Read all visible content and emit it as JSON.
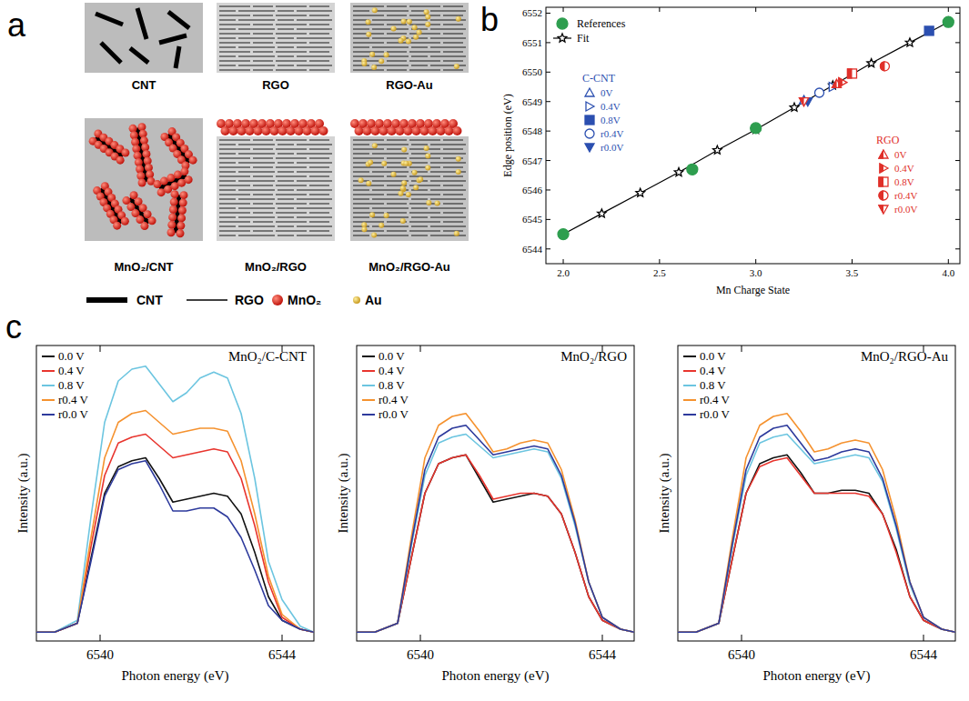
{
  "panel_letters": [
    "a",
    "b",
    "c"
  ],
  "diagram": {
    "boxes": [
      "CNT",
      "RGO",
      "RGO-Au",
      "MnO₂/CNT",
      "MnO₂/RGO",
      "MnO₂/RGO-Au"
    ],
    "legend": [
      "CNT",
      "RGO",
      "MnO₂",
      "Au"
    ]
  },
  "chart_data": [
    {
      "type": "scatter",
      "x_label": "Mn Charge State",
      "y_label": "Edge position (eV)",
      "xlim": [
        1.91,
        4.06
      ],
      "ylim": [
        6543.5,
        6552.2
      ],
      "xticks": [
        {
          "value": 2,
          "label": "2.0"
        },
        {
          "value": 2.5,
          "label": "2.5"
        },
        {
          "value": 3,
          "label": "3.0"
        },
        {
          "value": 3.5,
          "label": "3.5"
        },
        {
          "value": 4,
          "label": "4.0"
        }
      ],
      "yticks": [
        6544,
        6545,
        6546,
        6547,
        6548,
        6549,
        6550,
        6551,
        6552
      ],
      "legend": "upper left",
      "series": [
        {
          "name": "References",
          "type": "scatter",
          "marker": "circle-filled",
          "color": "#2e9e4f",
          "x": [
            2,
            2.67,
            3,
            4
          ],
          "values": [
            6544.5,
            6546.7,
            6548.1,
            6551.7
          ]
        },
        {
          "name": "Fit",
          "type": "line",
          "marker": "star",
          "color": "#000000",
          "x": [
            2.0,
            2.2,
            2.4,
            2.6,
            2.8,
            3.0,
            3.2,
            3.4,
            3.6,
            3.8,
            4.0
          ],
          "values": [
            6544.5,
            6545.2,
            6545.9,
            6546.6,
            6547.35,
            6548.05,
            6548.8,
            6549.55,
            6550.3,
            6551.0,
            6551.7
          ]
        }
      ],
      "groups": [
        {
          "name": "C-CNT",
          "color": "#2b4fb0",
          "series": [
            {
              "name": "0V",
              "marker": "triangle-up",
              "x": [
                3.25
              ],
              "values": [
                6549.05
              ]
            },
            {
              "name": "0.4V",
              "marker": "triangle-right",
              "x": [
                3.4
              ],
              "values": [
                6549.5
              ]
            },
            {
              "name": "0.8V",
              "marker": "square-filled",
              "x": [
                3.9
              ],
              "values": [
                6551.4
              ]
            },
            {
              "name": "r0.4V",
              "marker": "circle",
              "x": [
                3.33
              ],
              "values": [
                6549.3
              ]
            },
            {
              "name": "r0.0V",
              "marker": "triangle-down-filled",
              "x": [
                3.27
              ],
              "values": [
                6549.0
              ]
            }
          ]
        },
        {
          "name": "RGO",
          "color": "#e0302a",
          "series": [
            {
              "name": "0V",
              "marker": "triangle-up-half",
              "x": [
                3.42
              ],
              "values": [
                6549.6
              ]
            },
            {
              "name": "0.4V",
              "marker": "triangle-right-half",
              "x": [
                3.45
              ],
              "values": [
                6549.65
              ]
            },
            {
              "name": "0.8V",
              "marker": "square-half",
              "x": [
                3.5
              ],
              "values": [
                6549.95
              ]
            },
            {
              "name": "r0.4V",
              "marker": "circle-half",
              "x": [
                3.67
              ],
              "values": [
                6550.2
              ]
            },
            {
              "name": "r0.0V",
              "marker": "triangle-down-half",
              "x": [
                3.25
              ],
              "values": [
                6549.0
              ]
            }
          ]
        }
      ]
    },
    {
      "type": "line",
      "title": "MnO₂/C-CNT",
      "x_label": "Photon energy (eV)",
      "y_label": "Intensity (a.u.)",
      "xlim": [
        6538.6,
        6544.7
      ],
      "ylim": [
        0,
        1
      ],
      "xticks": [
        6540,
        6544
      ],
      "tick_labels": "x",
      "legend": "upper left",
      "x": [
        6538.6,
        6539.0,
        6539.5,
        6539.8,
        6540.1,
        6540.4,
        6540.7,
        6541.0,
        6541.3,
        6541.6,
        6541.9,
        6542.2,
        6542.5,
        6542.8,
        6543.1,
        6543.4,
        6543.7,
        6544.0,
        6544.4,
        6544.7
      ],
      "series": [
        {
          "name": "0.0 V",
          "color": "#111111",
          "values": [
            0.03,
            0.03,
            0.06,
            0.28,
            0.5,
            0.59,
            0.61,
            0.62,
            0.55,
            0.47,
            0.48,
            0.49,
            0.5,
            0.49,
            0.43,
            0.3,
            0.15,
            0.07,
            0.04,
            0.03
          ]
        },
        {
          "name": "0.4 V",
          "color": "#e8352e",
          "values": [
            0.03,
            0.03,
            0.06,
            0.32,
            0.56,
            0.67,
            0.69,
            0.7,
            0.66,
            0.62,
            0.63,
            0.64,
            0.65,
            0.64,
            0.55,
            0.39,
            0.2,
            0.08,
            0.04,
            0.03
          ]
        },
        {
          "name": "0.8 V",
          "color": "#6cc5e0",
          "values": [
            0.03,
            0.03,
            0.07,
            0.42,
            0.74,
            0.88,
            0.92,
            0.93,
            0.87,
            0.81,
            0.84,
            0.89,
            0.91,
            0.89,
            0.77,
            0.55,
            0.27,
            0.14,
            0.05,
            0.03
          ]
        },
        {
          "name": "r0.4 V",
          "color": "#f5922f",
          "values": [
            0.03,
            0.03,
            0.06,
            0.35,
            0.62,
            0.74,
            0.77,
            0.78,
            0.74,
            0.7,
            0.71,
            0.72,
            0.72,
            0.71,
            0.61,
            0.43,
            0.22,
            0.09,
            0.04,
            0.03
          ]
        },
        {
          "name": "r0.0 V",
          "color": "#2d3a9c",
          "values": [
            0.03,
            0.03,
            0.06,
            0.27,
            0.49,
            0.58,
            0.6,
            0.61,
            0.53,
            0.44,
            0.44,
            0.45,
            0.45,
            0.42,
            0.35,
            0.24,
            0.12,
            0.07,
            0.04,
            0.03
          ]
        }
      ]
    },
    {
      "type": "line",
      "title": "MnO₂/RGO",
      "x_label": "Photon energy (eV)",
      "y_label": "Intensity (a.u.)",
      "xlim": [
        6538.6,
        6544.7
      ],
      "ylim": [
        0,
        1
      ],
      "xticks": [
        6540,
        6544
      ],
      "tick_labels": "x",
      "legend": "upper left",
      "x": [
        6538.6,
        6539.0,
        6539.5,
        6539.8,
        6540.1,
        6540.4,
        6540.7,
        6541.0,
        6541.3,
        6541.6,
        6541.9,
        6542.2,
        6542.5,
        6542.8,
        6543.1,
        6543.4,
        6543.7,
        6544.0,
        6544.4,
        6544.7
      ],
      "series": [
        {
          "name": "0.0 V",
          "color": "#111111",
          "values": [
            0.03,
            0.03,
            0.06,
            0.28,
            0.5,
            0.6,
            0.62,
            0.63,
            0.55,
            0.47,
            0.48,
            0.49,
            0.5,
            0.49,
            0.43,
            0.3,
            0.15,
            0.07,
            0.04,
            0.03
          ]
        },
        {
          "name": "0.4 V",
          "color": "#e8352e",
          "values": [
            0.03,
            0.03,
            0.06,
            0.28,
            0.5,
            0.6,
            0.62,
            0.63,
            0.56,
            0.48,
            0.49,
            0.5,
            0.5,
            0.49,
            0.43,
            0.3,
            0.15,
            0.07,
            0.04,
            0.03
          ]
        },
        {
          "name": "0.8 V",
          "color": "#6cc5e0",
          "values": [
            0.03,
            0.03,
            0.06,
            0.32,
            0.56,
            0.67,
            0.69,
            0.7,
            0.66,
            0.62,
            0.63,
            0.64,
            0.65,
            0.64,
            0.55,
            0.39,
            0.2,
            0.08,
            0.04,
            0.03
          ]
        },
        {
          "name": "r0.4 V",
          "color": "#f5922f",
          "values": [
            0.03,
            0.03,
            0.06,
            0.35,
            0.62,
            0.73,
            0.76,
            0.77,
            0.71,
            0.64,
            0.65,
            0.67,
            0.68,
            0.67,
            0.58,
            0.41,
            0.2,
            0.08,
            0.04,
            0.03
          ]
        },
        {
          "name": "r0.0 V",
          "color": "#2d3a9c",
          "values": [
            0.03,
            0.03,
            0.06,
            0.33,
            0.58,
            0.69,
            0.72,
            0.73,
            0.68,
            0.63,
            0.64,
            0.65,
            0.66,
            0.65,
            0.56,
            0.4,
            0.2,
            0.08,
            0.04,
            0.03
          ]
        }
      ]
    },
    {
      "type": "line",
      "title": "MnO₂/RGO-Au",
      "x_label": "Photon energy (eV)",
      "y_label": "Intensity (a.u.)",
      "xlim": [
        6538.6,
        6544.7
      ],
      "ylim": [
        0,
        1
      ],
      "xticks": [
        6540,
        6544
      ],
      "tick_labels": "x",
      "legend": "upper left",
      "x": [
        6538.6,
        6539.0,
        6539.5,
        6539.8,
        6540.1,
        6540.4,
        6540.7,
        6541.0,
        6541.3,
        6541.6,
        6541.9,
        6542.2,
        6542.5,
        6542.8,
        6543.1,
        6543.4,
        6543.7,
        6544.0,
        6544.4,
        6544.7
      ],
      "series": [
        {
          "name": "0.0 V",
          "color": "#111111",
          "values": [
            0.03,
            0.03,
            0.06,
            0.28,
            0.5,
            0.6,
            0.62,
            0.63,
            0.57,
            0.5,
            0.5,
            0.51,
            0.51,
            0.5,
            0.43,
            0.31,
            0.15,
            0.07,
            0.04,
            0.03
          ]
        },
        {
          "name": "0.4 V",
          "color": "#e8352e",
          "values": [
            0.03,
            0.03,
            0.06,
            0.28,
            0.5,
            0.59,
            0.61,
            0.62,
            0.56,
            0.5,
            0.5,
            0.5,
            0.5,
            0.49,
            0.43,
            0.3,
            0.15,
            0.07,
            0.04,
            0.03
          ]
        },
        {
          "name": "0.8 V",
          "color": "#6cc5e0",
          "values": [
            0.03,
            0.03,
            0.06,
            0.32,
            0.56,
            0.67,
            0.69,
            0.7,
            0.65,
            0.6,
            0.61,
            0.62,
            0.63,
            0.62,
            0.54,
            0.38,
            0.19,
            0.08,
            0.04,
            0.03
          ]
        },
        {
          "name": "r0.4 V",
          "color": "#f5922f",
          "values": [
            0.03,
            0.03,
            0.06,
            0.35,
            0.62,
            0.73,
            0.76,
            0.77,
            0.71,
            0.64,
            0.65,
            0.67,
            0.68,
            0.67,
            0.58,
            0.41,
            0.2,
            0.08,
            0.04,
            0.03
          ]
        },
        {
          "name": "r0.0 V",
          "color": "#2d3a9c",
          "values": [
            0.03,
            0.03,
            0.06,
            0.33,
            0.58,
            0.69,
            0.72,
            0.73,
            0.67,
            0.61,
            0.62,
            0.64,
            0.65,
            0.64,
            0.55,
            0.39,
            0.2,
            0.08,
            0.04,
            0.03
          ]
        }
      ]
    }
  ]
}
